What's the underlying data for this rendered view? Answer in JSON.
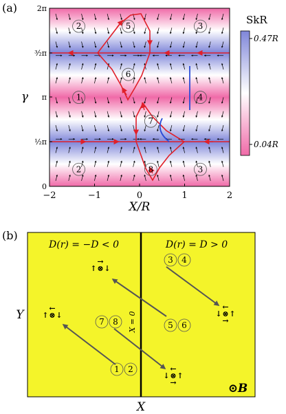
{
  "panel_a": {
    "label": "(a)",
    "colorbar_title": "SkR",
    "colorbar_max": "0.47R",
    "colorbar_min": "0.04R",
    "colorbar_colors": {
      "high": "#7f86d9",
      "low": "#f06aa8",
      "mid": "#ffffff"
    },
    "ylabel": "γ",
    "xlabel": "X/R",
    "chart_data": {
      "type": "heatmap",
      "title": "",
      "xlabel": "X/R",
      "ylabel": "γ",
      "xlim": [
        -2,
        2
      ],
      "ylim": [
        0,
        6.2832
      ],
      "x_ticks": [
        -2,
        -1,
        0,
        1,
        2
      ],
      "y_ticks": [
        "0",
        "½π",
        "π",
        "³⁄₂π",
        "2π"
      ],
      "band_pattern": "SkR varies with γ only; maxima (blue, 0.47R) near γ = π/2 and 3π/2, minima (pink, 0.04R) near γ = 0, π, 2π",
      "fixed_lines_gamma": [
        "½π",
        "³⁄₂π"
      ],
      "regions": [
        {
          "label": "1",
          "x": -1.35,
          "gamma": 3.14
        },
        {
          "label": "2",
          "x": -1.35,
          "gamma": 5.65
        },
        {
          "label": "2",
          "x": -1.35,
          "gamma": 0.6
        },
        {
          "label": "3",
          "x": 1.35,
          "gamma": 5.65
        },
        {
          "label": "3",
          "x": 1.35,
          "gamma": 0.6
        },
        {
          "label": "4",
          "x": 1.35,
          "gamma": 3.14
        },
        {
          "label": "5",
          "x": -0.25,
          "gamma": 5.65
        },
        {
          "label": "6",
          "x": -0.25,
          "gamma": 3.95
        },
        {
          "label": "7",
          "x": 0.25,
          "gamma": 2.3
        },
        {
          "label": "8",
          "x": 0.25,
          "gamma": 0.6
        }
      ]
    }
  },
  "panel_b": {
    "label": "(b)",
    "left_title": "D(r) = −D < 0",
    "right_title": "D(r) = D > 0",
    "divider_label": "X = 0",
    "y_axis_label": "Y",
    "x_axis_label": "X",
    "field_label": "⊙B",
    "background_color": "#f4f42a",
    "state_groups": [
      {
        "labels": [
          "1",
          "2"
        ]
      },
      {
        "labels": [
          "3",
          "4"
        ]
      },
      {
        "labels": [
          "5",
          "6"
        ]
      },
      {
        "labels": [
          "7",
          "8"
        ]
      }
    ]
  }
}
